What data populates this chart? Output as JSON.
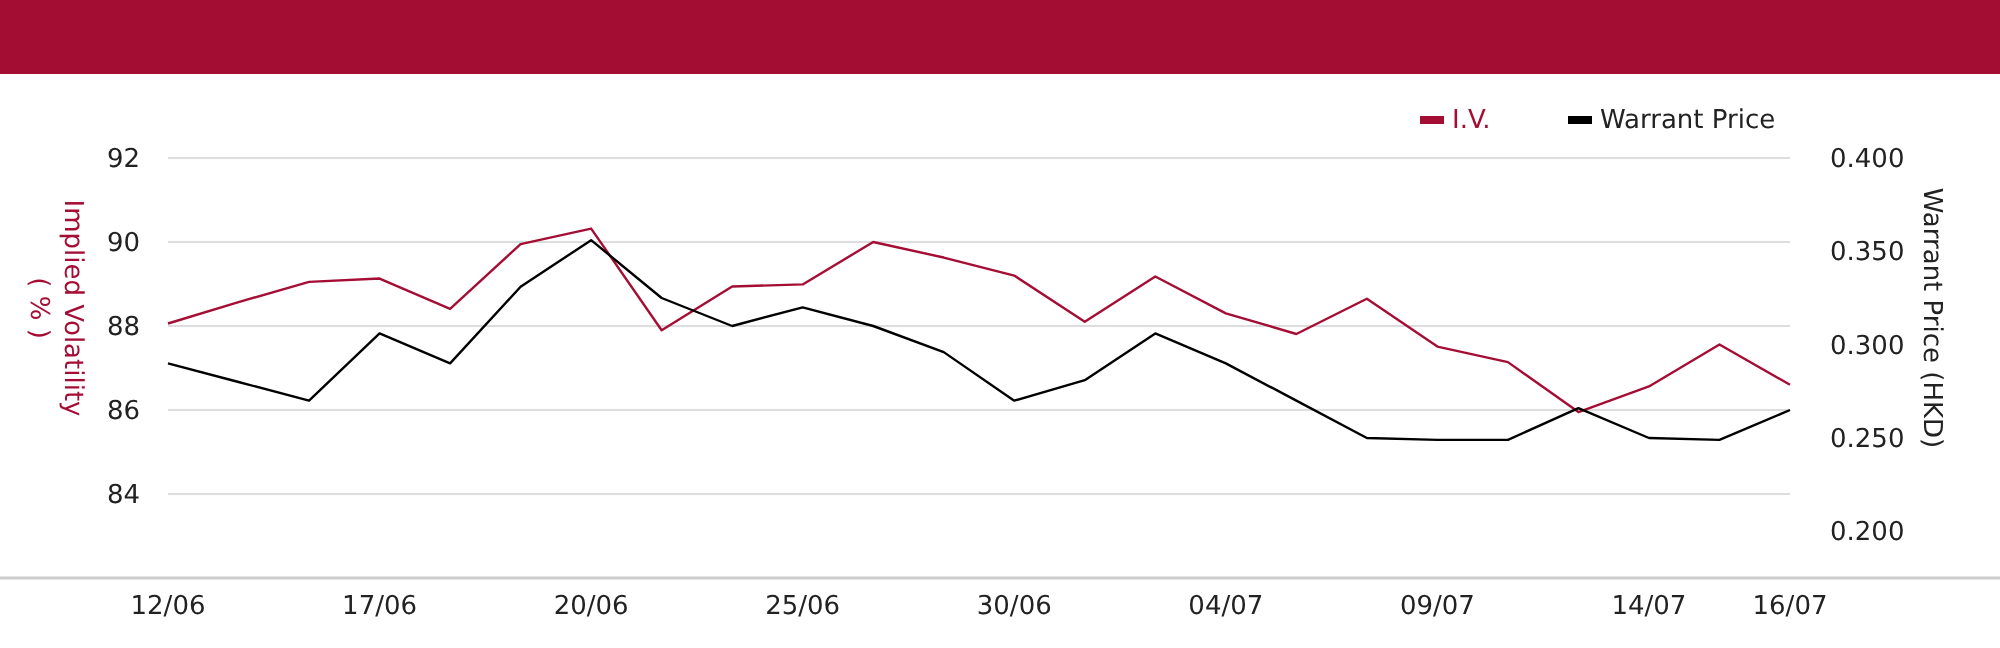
{
  "chart_data": {
    "type": "line",
    "xlabel": null,
    "ylabel": "Implied Volatility\n( % )",
    "y2label": "Warrant Price (HKD)",
    "categories": [
      "12/06",
      null,
      null,
      "17/06",
      null,
      null,
      "20/06",
      null,
      null,
      "25/06",
      null,
      null,
      "30/06",
      null,
      null,
      "04/07",
      null,
      null,
      "09/07",
      null,
      null,
      "14/07",
      null,
      "16/07"
    ],
    "series": [
      {
        "name": "I.V.",
        "color": "#a50e34",
        "values": [
          88.06,
          88.57,
          89.05,
          89.13,
          88.41,
          89.95,
          90.32,
          87.9,
          88.94,
          88.99,
          90.0,
          89.63,
          89.2,
          88.1,
          89.18,
          88.3,
          87.81,
          88.65,
          87.51,
          87.14,
          85.95,
          86.56,
          87.56,
          86.6
        ]
      },
      {
        "name": "Warrant Price",
        "color": "#000000",
        "axis": "y2",
        "values": [
          0.29,
          0.28,
          0.27,
          0.306,
          0.29,
          0.331,
          0.356,
          0.325,
          0.31,
          0.32,
          0.31,
          0.296,
          0.27,
          0.281,
          0.306,
          0.29,
          0.27,
          0.25,
          0.249,
          0.249,
          0.266,
          0.25,
          0.249,
          0.265
        ]
      }
    ],
    "ylim": [
      82,
      92
    ],
    "yticks": [
      84,
      86,
      88,
      90,
      92
    ],
    "y2lim": [
      0.175,
      0.4
    ],
    "y2ticks": [
      {
        "value": 0.2,
        "label": "0.200"
      },
      {
        "value": 0.25,
        "label": "0.250"
      },
      {
        "value": 0.3,
        "label": "0.300"
      },
      {
        "value": 0.35,
        "label": "0.350"
      },
      {
        "value": 0.4,
        "label": "0.400"
      }
    ],
    "grid": "y",
    "legend": "top right",
    "marker": "none",
    "line_style": "solid"
  }
}
